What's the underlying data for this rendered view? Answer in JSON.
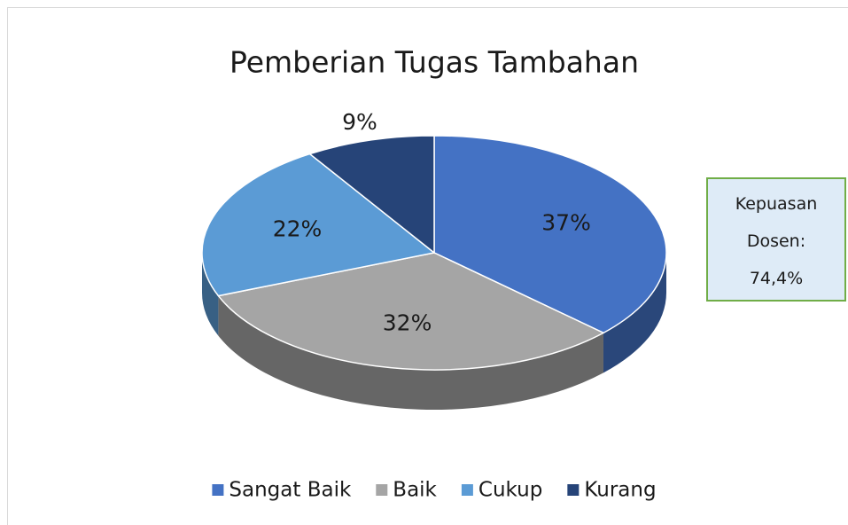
{
  "chart_data": {
    "type": "pie",
    "title": "Pemberian Tugas Tambahan",
    "categories": [
      "Sangat Baik",
      "Baik",
      "Cukup",
      "Kurang"
    ],
    "series": [
      {
        "values": [
          37,
          32,
          22,
          9
        ],
        "value_labels": [
          "37%",
          "32%",
          "22%",
          "9%"
        ],
        "colors": [
          "#4472c4",
          "#a5a5a5",
          "#5b9bd5",
          "#264478"
        ]
      }
    ],
    "annotation": "Kepuasan Dosen: 74,4%",
    "legend": "bottom"
  }
}
